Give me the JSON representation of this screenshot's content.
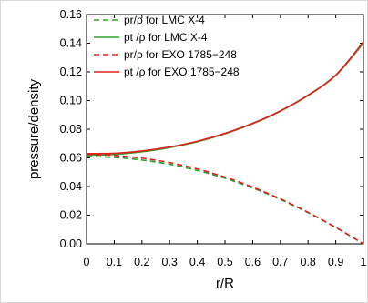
{
  "chart_data": {
    "type": "line",
    "title": "",
    "xlabel": "r/R",
    "ylabel": "pressure/density",
    "xlim": [
      0,
      1
    ],
    "ylim": [
      0,
      0.16
    ],
    "xticks": [
      0,
      0.1,
      0.2,
      0.3,
      0.4,
      0.5,
      0.6,
      0.7,
      0.8,
      0.9,
      1
    ],
    "xtick_labels": [
      "0",
      "0.1",
      "0.2",
      "0.3",
      "0.4",
      "0.5",
      "0.6",
      "0.7",
      "0.8",
      "0.9",
      "1"
    ],
    "yticks": [
      0,
      0.02,
      0.04,
      0.06,
      0.08,
      0.1,
      0.12,
      0.14,
      0.16
    ],
    "ytick_labels": [
      "0.00",
      "0.02",
      "0.04",
      "0.06",
      "0.08",
      "0.10",
      "0.12",
      "0.14",
      "0.16"
    ],
    "grid": false,
    "legend_position": "top-left",
    "x": [
      0,
      0.1,
      0.2,
      0.3,
      0.4,
      0.5,
      0.6,
      0.7,
      0.8,
      0.9,
      1
    ],
    "series": [
      {
        "name": "pr/ρ  for LMC X-4",
        "color": "#2ca02c",
        "dash": "dashed",
        "values": [
          0.061,
          0.0603,
          0.0585,
          0.0555,
          0.0512,
          0.0458,
          0.039,
          0.031,
          0.0218,
          0.0114,
          0
        ]
      },
      {
        "name": "pt /ρ  for LMC X-4",
        "color": "#2ca02c",
        "dash": "solid",
        "values": [
          0.062,
          0.0624,
          0.0642,
          0.0672,
          0.0712,
          0.0768,
          0.0838,
          0.0925,
          0.1035,
          0.1175,
          0.14
        ]
      },
      {
        "name": "pr/ρ  for EXO 1785−248",
        "color": "#e0201c",
        "dash": "dashed",
        "values": [
          0.0625,
          0.0617,
          0.0598,
          0.0567,
          0.0523,
          0.0466,
          0.0396,
          0.0314,
          0.022,
          0.0115,
          0
        ]
      },
      {
        "name": "pt /ρ  for EXO 1785−248",
        "color": "#e0201c",
        "dash": "solid",
        "values": [
          0.063,
          0.0632,
          0.0648,
          0.0676,
          0.0716,
          0.0771,
          0.0841,
          0.0928,
          0.1038,
          0.1178,
          0.141
        ]
      }
    ]
  }
}
